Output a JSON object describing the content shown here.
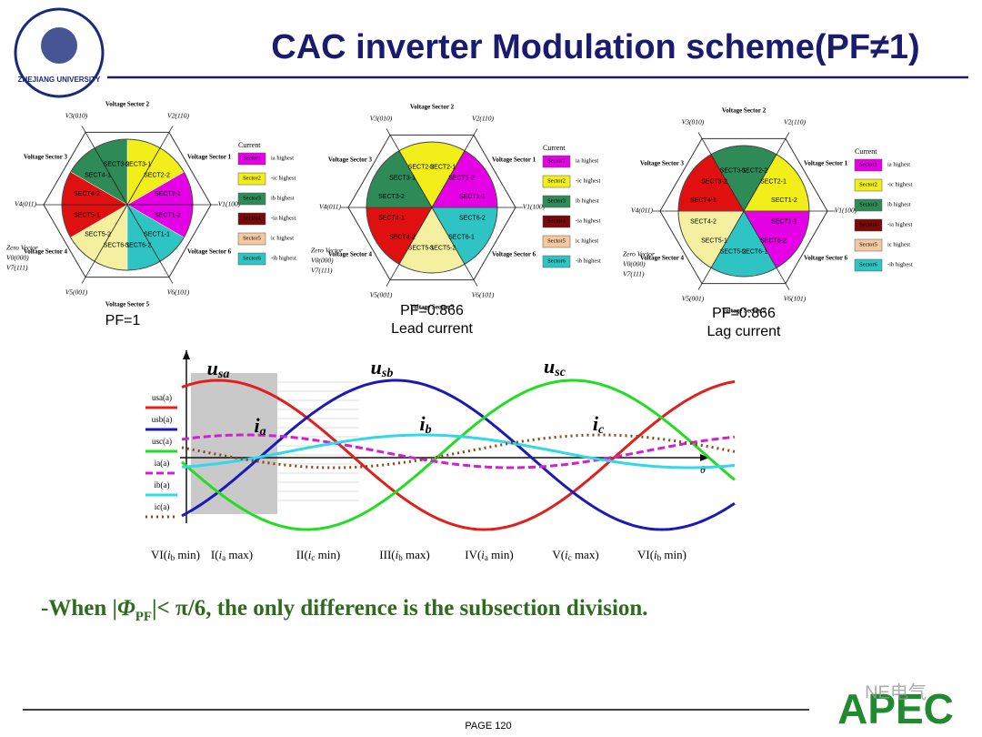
{
  "header": {
    "title": "CAC inverter Modulation scheme(PF≠1)",
    "logo_text": "ZHEJIANG UNIVERSITY"
  },
  "diagrams": [
    {
      "caption": [
        "PF=1"
      ],
      "vectors": [
        "V1(100)",
        "V2(110)",
        "V3(010)",
        "V4(011)",
        "V5(001)",
        "V6(101)"
      ],
      "sectors": [
        "Voltage Sector 1",
        "Voltage Sector 2",
        "Voltage Sector 3",
        "Voltage Sector 4",
        "Voltage Sector 5",
        "Voltage Sector 6"
      ],
      "zero": [
        "Zero Vector",
        "V0(000)",
        "V7(111)"
      ],
      "sector_colors": [
        "#e600e6",
        "#f2ee1a",
        "#2e8b57",
        "#e01010",
        "#f5f0a0",
        "#2ec4c4"
      ],
      "segments": [
        "SECT1-2",
        "SECT2-1",
        "SECT2-2",
        "SECT3-1",
        "SECT3-2",
        "SECT4-1",
        "SECT4-2",
        "SECT5-1",
        "SECT5-2",
        "SECT6-1",
        "SECT6-2",
        "SECT1-1"
      ],
      "legend_title": "Current",
      "legend": [
        {
          "name": "Sector1",
          "color": "#e600e6",
          "note": "ia highest"
        },
        {
          "name": "Sector2",
          "color": "#f2ee1a",
          "note": "-ic highest"
        },
        {
          "name": "Sector3",
          "color": "#2e8b57",
          "note": "ib highest"
        },
        {
          "name": "Sector4",
          "color": "#7a0a0a",
          "note": "-ia highest"
        },
        {
          "name": "Sector5",
          "color": "#f5c9a0",
          "note": "ic highest"
        },
        {
          "name": "Sector6",
          "color": "#2ec4c4",
          "note": "-ib highest"
        }
      ]
    },
    {
      "caption": [
        "PF=0.866",
        "Lead current"
      ],
      "vectors": [
        "V1(100)",
        "V2(110)",
        "V3(010)",
        "V4(011)",
        "V5(001)",
        "V6(101)"
      ],
      "sectors": [
        "Voltage Sector 1",
        "Voltage Sector 2",
        "Voltage Sector 3",
        "Voltage Sector 4",
        "Voltage Sector 5",
        "Voltage Sector 6"
      ],
      "zero": [
        "Zero Vector",
        "V0(000)",
        "V7(111)"
      ],
      "sector_colors": [
        "#e600e6",
        "#f2ee1a",
        "#2e8b57",
        "#e01010",
        "#f5f0a0",
        "#2ec4c4"
      ],
      "segments": [
        "SECT1-1",
        "SECT1-2",
        "SECT2-1",
        "SECT2-2",
        "SECT3-1",
        "SECT3-2",
        "SECT4-1",
        "SECT4-2",
        "SECT5-1",
        "SECT5-2",
        "SECT6-1",
        "SECT6-2"
      ],
      "legend_title": "Current",
      "legend": [
        {
          "name": "Sector1",
          "color": "#e600e6",
          "note": "ia highest"
        },
        {
          "name": "Sector2",
          "color": "#f2ee1a",
          "note": "-ic highest"
        },
        {
          "name": "Sector3",
          "color": "#2e8b57",
          "note": "ib highest"
        },
        {
          "name": "Sector4",
          "color": "#7a0a0a",
          "note": "-ia highest"
        },
        {
          "name": "Sector5",
          "color": "#f5c9a0",
          "note": "ic highest"
        },
        {
          "name": "Sector6",
          "color": "#2ec4c4",
          "note": "-ib highest"
        }
      ]
    },
    {
      "caption": [
        "PF=0.866",
        "Lag current"
      ],
      "vectors": [
        "V1(100)",
        "V2(110)",
        "V3(010)",
        "V4(011)",
        "V5(001)",
        "V6(101)"
      ],
      "sectors": [
        "Voltage Sector 1",
        "Voltage Sector 2",
        "Voltage Sector 3",
        "Voltage Sector 4",
        "Voltage Sector 5",
        "Voltage Sector 6"
      ],
      "zero": [
        "Zero Vector",
        "V0(000)",
        "V7(111)"
      ],
      "sector_colors": [
        "#e600e6",
        "#f2ee1a",
        "#2e8b57",
        "#e01010",
        "#f5f0a0",
        "#2ec4c4"
      ],
      "segments": [
        "SECT6-2",
        "SECT1-1",
        "SECT1-2",
        "SECT2-1",
        "SECT2-2",
        "SECT3-1",
        "SECT3-2",
        "SECT4-1",
        "SECT4-2",
        "SECT5-1",
        "SECT5-2",
        "SECT6-1"
      ],
      "legend_title": "Current",
      "legend": [
        {
          "name": "Sector1",
          "color": "#e600e6",
          "note": "ia highest"
        },
        {
          "name": "Sector2",
          "color": "#f2ee1a",
          "note": "-ic highest"
        },
        {
          "name": "Sector3",
          "color": "#2e8b57",
          "note": "ib highest"
        },
        {
          "name": "Sector4",
          "color": "#7a0a0a",
          "note": "-ia highest"
        },
        {
          "name": "Sector5",
          "color": "#f5c9a0",
          "note": "ic highest"
        },
        {
          "name": "Sector6",
          "color": "#2ec4c4",
          "note": "-ib highest"
        }
      ]
    }
  ],
  "waveform": {
    "curves": [
      {
        "main": "u",
        "sub": "sa"
      },
      {
        "main": "u",
        "sub": "sb"
      },
      {
        "main": "u",
        "sub": "sc"
      },
      {
        "main": "i",
        "sub": "a"
      },
      {
        "main": "i",
        "sub": "b"
      },
      {
        "main": "i",
        "sub": "c"
      }
    ],
    "legend": [
      "usa(a)",
      "usb(a)",
      "usc(a)",
      "ia(a)",
      "ib(a)",
      "ic(a)"
    ],
    "colors": [
      "#e0201c",
      "#1a1ab8",
      "#22dd22",
      "#d020d0",
      "#30d8e8",
      "#8b4513"
    ],
    "axis_label": "θ",
    "sections": [
      {
        "pre": "VI(",
        "var": "i",
        "sub": "b",
        "post": " min)"
      },
      {
        "pre": "I(",
        "var": "i",
        "sub": "a",
        "post": " max)"
      },
      {
        "pre": "II(",
        "var": "i",
        "sub": "c",
        "post": " min)"
      },
      {
        "pre": "III(",
        "var": "i",
        "sub": "b",
        "post": " max)"
      },
      {
        "pre": "IV(",
        "var": "i",
        "sub": "a",
        "post": " min)"
      },
      {
        "pre": "V(",
        "var": "i",
        "sub": "c",
        "post": " max)"
      },
      {
        "pre": "VI(",
        "var": "i",
        "sub": "b",
        "post": " min)"
      }
    ]
  },
  "note": {
    "pre": "-When |",
    "phi": "Φ",
    "sub": "PF",
    "post": "|< π/6, the only difference is the subsection division."
  },
  "footer": {
    "page": "PAGE 120",
    "brand": "APEC",
    "watermark": "NE电气"
  }
}
